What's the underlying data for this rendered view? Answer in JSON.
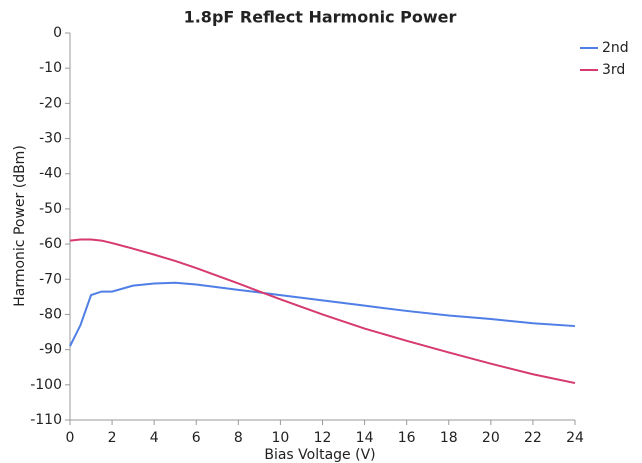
{
  "chart_data": {
    "type": "line",
    "title": "1.8pF Reflect Harmonic Power",
    "xlabel": "Bias Voltage (V)",
    "ylabel": "Harmonic Power (dBm)",
    "x": [
      0,
      0.5,
      1,
      1.5,
      2,
      3,
      4,
      5,
      6,
      8,
      10,
      12,
      14,
      16,
      18,
      20,
      22,
      24
    ],
    "series": [
      {
        "name": "2nd",
        "color": "#4f7fe6",
        "values": [
          -89,
          -83,
          -74.5,
          -73.5,
          -73.5,
          -71.8,
          -71.2,
          -71,
          -71.5,
          -73,
          -74.5,
          -76,
          -77.5,
          -79,
          -80.3,
          -81.3,
          -82.5,
          -83.3
        ]
      },
      {
        "name": "3rd",
        "color": "#d63a6e",
        "values": [
          -59,
          -58.7,
          -58.7,
          -59,
          -59.7,
          -61.3,
          -63,
          -64.8,
          -66.8,
          -71.2,
          -75.7,
          -80,
          -84,
          -87.5,
          -90.8,
          -94,
          -97,
          -99.5
        ]
      }
    ],
    "xlim": [
      0,
      24
    ],
    "xticks": [
      0,
      2,
      4,
      6,
      8,
      10,
      12,
      14,
      16,
      18,
      20,
      22,
      24
    ],
    "ylim": [
      -110,
      0
    ],
    "yticks": [
      0,
      -10,
      -20,
      -30,
      -40,
      -50,
      -60,
      -70,
      -80,
      -90,
      -100,
      -110
    ],
    "grid": false,
    "legend": "right"
  }
}
